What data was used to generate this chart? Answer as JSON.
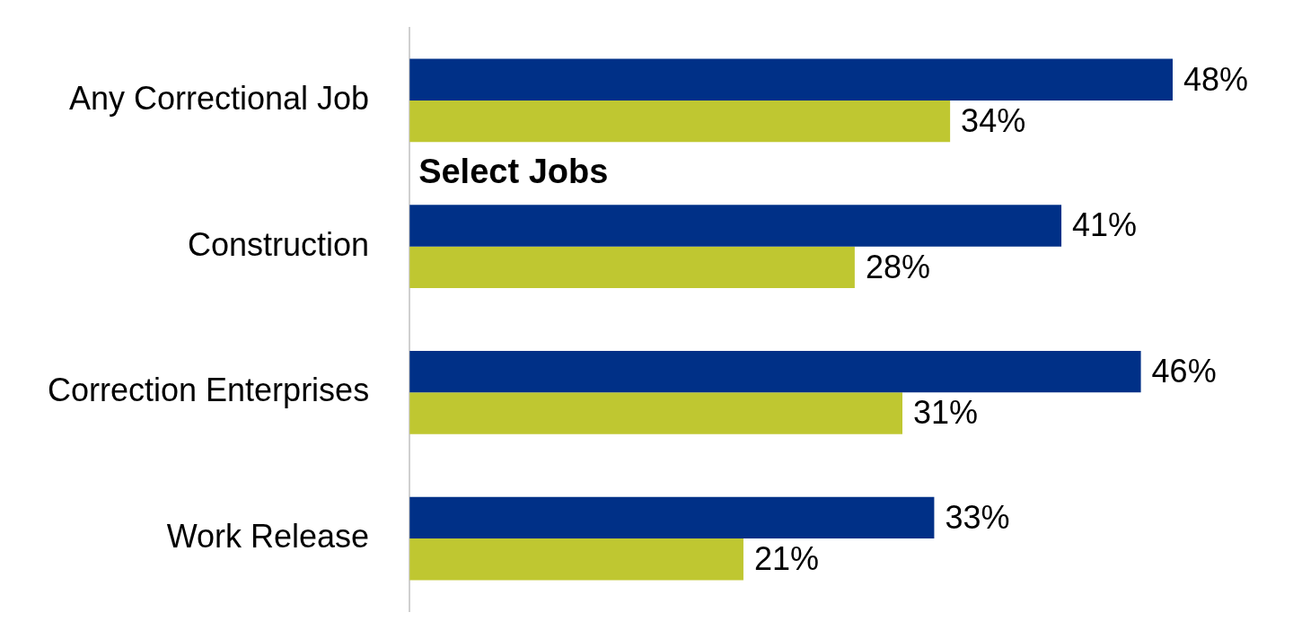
{
  "chart_data": {
    "type": "bar",
    "orientation": "horizontal",
    "categories": [
      "Any Correctional Job",
      "Construction",
      "Correction Enterprises",
      "Work Release"
    ],
    "series": [
      {
        "color": "#003087",
        "values": [
          48,
          41,
          46,
          33
        ],
        "value_labels": [
          "48%",
          "41%",
          "46%",
          "33%"
        ]
      },
      {
        "color": "#bfc731",
        "values": [
          34,
          28,
          31,
          21
        ],
        "value_labels": [
          "34%",
          "28%",
          "31%",
          "21%"
        ]
      }
    ],
    "legend": false,
    "annotations": [
      "Select Jobs"
    ]
  }
}
